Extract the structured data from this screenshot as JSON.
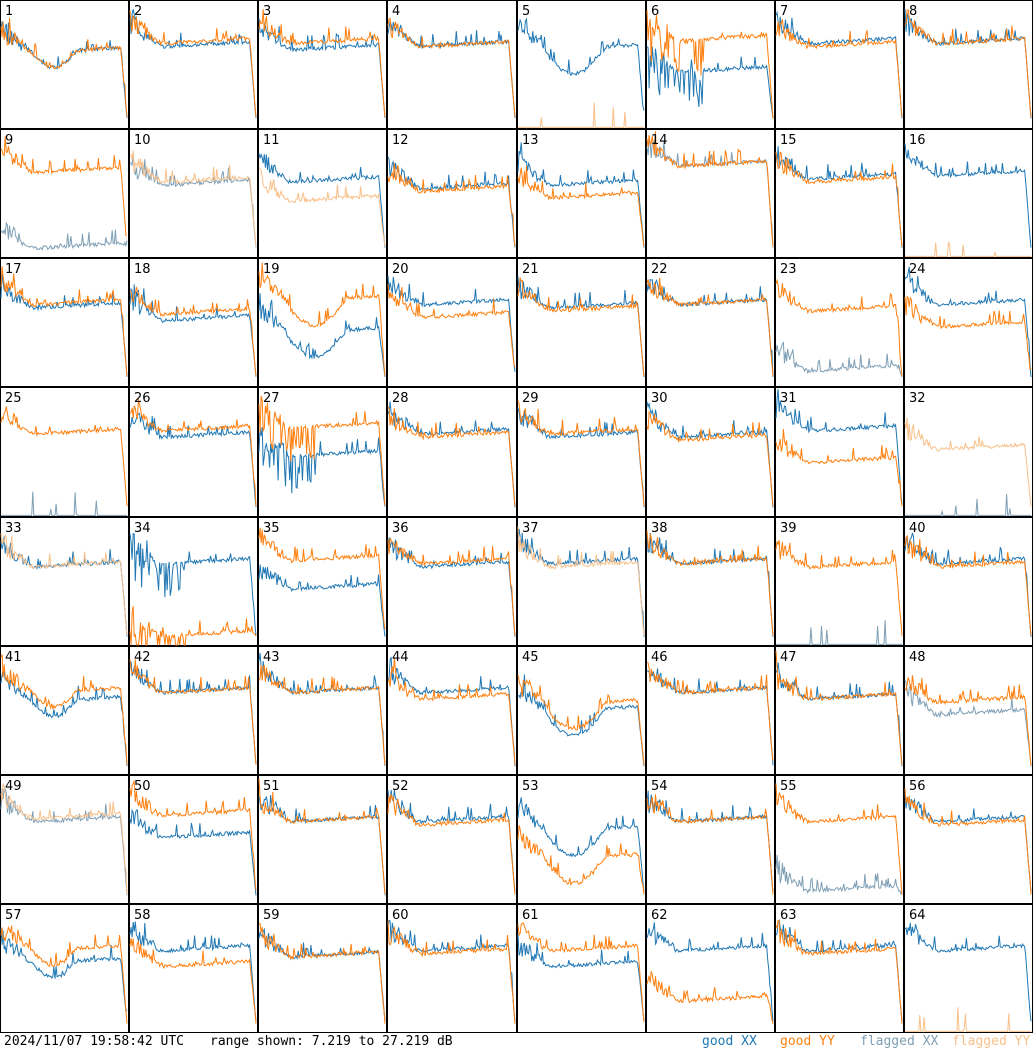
{
  "footer": {
    "timestamp": "2024/11/07 19:58:42 UTC",
    "range_text": "range shown: 7.219 to 27.219 dB"
  },
  "legend": [
    {
      "label": "good XX",
      "color": "#1f77b4"
    },
    {
      "label": "good YY",
      "color": "#ff7f0e"
    },
    {
      "label": "flagged XX",
      "color": "#7f9fb5"
    },
    {
      "label": "flagged YY",
      "color": "#f8c08a"
    }
  ],
  "chart_data": {
    "type": "line",
    "title": "",
    "ylim": [
      7.219,
      27.219
    ],
    "yunit": "dB",
    "grid": false,
    "rows": 8,
    "cols": 8,
    "panels": [
      {
        "id": "1",
        "xx": "good",
        "yy": "good",
        "xx_level": 18.5,
        "yy_level": 18.5,
        "anomaly": "dip"
      },
      {
        "id": "2",
        "xx": "good",
        "yy": "good",
        "xx_level": 19.5,
        "yy_level": 20.0
      },
      {
        "id": "3",
        "xx": "good",
        "yy": "good",
        "xx_level": 19.0,
        "yy_level": 20.0
      },
      {
        "id": "4",
        "xx": "good",
        "yy": "good",
        "xx_level": 19.5,
        "yy_level": 19.5
      },
      {
        "id": "5",
        "xx": "good",
        "yy": "flagged",
        "xx_level": 19.0,
        "yy_level": 7.3,
        "anomaly": "trough"
      },
      {
        "id": "6",
        "xx": "good",
        "yy": "good",
        "xx_level": 15.5,
        "yy_level": 20.5,
        "anomaly": "spiky"
      },
      {
        "id": "7",
        "xx": "good",
        "yy": "good",
        "xx_level": 20.0,
        "yy_level": 19.5
      },
      {
        "id": "8",
        "xx": "good",
        "yy": "good",
        "xx_level": 20.0,
        "yy_level": 20.0
      },
      {
        "id": "9",
        "xx": "flagged",
        "yy": "good",
        "xx_level": 8.0,
        "yy_level": 20.0
      },
      {
        "id": "10",
        "xx": "flagged",
        "yy": "flagged",
        "xx_level": 18.0,
        "yy_level": 18.5
      },
      {
        "id": "11",
        "xx": "good",
        "yy": "flagged",
        "xx_level": 18.5,
        "yy_level": 15.5
      },
      {
        "id": "12",
        "xx": "good",
        "yy": "good",
        "xx_level": 17.5,
        "yy_level": 17.0
      },
      {
        "id": "13",
        "xx": "good",
        "yy": "good",
        "xx_level": 18.0,
        "yy_level": 16.0
      },
      {
        "id": "14",
        "xx": "flagged",
        "yy": "good",
        "xx_level": 21.0,
        "yy_level": 21.0
      },
      {
        "id": "15",
        "xx": "good",
        "yy": "good",
        "xx_level": 19.0,
        "yy_level": 18.5
      },
      {
        "id": "16",
        "xx": "good",
        "yy": "flagged",
        "xx_level": 19.5,
        "yy_level": 7.3
      },
      {
        "id": "17",
        "xx": "good",
        "yy": "good",
        "xx_level": 19.0,
        "yy_level": 19.5
      },
      {
        "id": "18",
        "xx": "good",
        "yy": "good",
        "xx_level": 17.0,
        "yy_level": 18.0
      },
      {
        "id": "19",
        "xx": "good",
        "yy": "good",
        "xx_level": 15.0,
        "yy_level": 20.0,
        "anomaly": "trough"
      },
      {
        "id": "20",
        "xx": "good",
        "yy": "good",
        "xx_level": 19.5,
        "yy_level": 17.5
      },
      {
        "id": "21",
        "xx": "good",
        "yy": "good",
        "xx_level": 19.0,
        "yy_level": 18.5
      },
      {
        "id": "22",
        "xx": "good",
        "yy": "good",
        "xx_level": 19.5,
        "yy_level": 19.5
      },
      {
        "id": "23",
        "xx": "flagged",
        "yy": "good",
        "xx_level": 9.0,
        "yy_level": 18.5
      },
      {
        "id": "24",
        "xx": "good",
        "yy": "good",
        "xx_level": 19.5,
        "yy_level": 16.0
      },
      {
        "id": "25",
        "xx": "flagged",
        "yy": "good",
        "xx_level": 7.3,
        "yy_level": 19.5
      },
      {
        "id": "26",
        "xx": "good",
        "yy": "good",
        "xx_level": 19.0,
        "yy_level": 20.0
      },
      {
        "id": "27",
        "xx": "good",
        "yy": "good",
        "xx_level": 16.0,
        "yy_level": 20.5,
        "anomaly": "spiky"
      },
      {
        "id": "28",
        "xx": "good",
        "yy": "good",
        "xx_level": 19.5,
        "yy_level": 19.0
      },
      {
        "id": "29",
        "xx": "good",
        "yy": "good",
        "xx_level": 19.0,
        "yy_level": 19.5
      },
      {
        "id": "30",
        "xx": "good",
        "yy": "good",
        "xx_level": 19.0,
        "yy_level": 18.5
      },
      {
        "id": "31",
        "xx": "good",
        "yy": "good",
        "xx_level": 20.0,
        "yy_level": 15.0
      },
      {
        "id": "32",
        "xx": "flagged",
        "yy": "flagged",
        "xx_level": 7.3,
        "yy_level": 17.0
      },
      {
        "id": "33",
        "xx": "good",
        "yy": "flagged",
        "xx_level": 19.0,
        "yy_level": 19.0
      },
      {
        "id": "34",
        "xx": "good",
        "yy": "good",
        "xx_level": 19.5,
        "yy_level": 8.0,
        "anomaly": "spiky"
      },
      {
        "id": "35",
        "xx": "good",
        "yy": "good",
        "xx_level": 15.5,
        "yy_level": 20.0
      },
      {
        "id": "36",
        "xx": "good",
        "yy": "good",
        "xx_level": 19.0,
        "yy_level": 19.5
      },
      {
        "id": "37",
        "xx": "good",
        "yy": "flagged",
        "xx_level": 19.5,
        "yy_level": 19.0
      },
      {
        "id": "38",
        "xx": "good",
        "yy": "good",
        "xx_level": 19.5,
        "yy_level": 19.5
      },
      {
        "id": "39",
        "xx": "flagged",
        "yy": "good",
        "xx_level": 7.3,
        "yy_level": 19.0
      },
      {
        "id": "40",
        "xx": "good",
        "yy": "good",
        "xx_level": 19.5,
        "yy_level": 19.0
      },
      {
        "id": "41",
        "xx": "good",
        "yy": "good",
        "xx_level": 18.0,
        "yy_level": 19.5,
        "anomaly": "dip"
      },
      {
        "id": "42",
        "xx": "good",
        "yy": "good",
        "xx_level": 19.5,
        "yy_level": 19.5
      },
      {
        "id": "43",
        "xx": "good",
        "yy": "good",
        "xx_level": 19.5,
        "yy_level": 19.5
      },
      {
        "id": "44",
        "xx": "good",
        "yy": "good",
        "xx_level": 19.5,
        "yy_level": 18.5
      },
      {
        "id": "45",
        "xx": "good",
        "yy": "good",
        "xx_level": 16.5,
        "yy_level": 17.5,
        "anomaly": "trough"
      },
      {
        "id": "46",
        "xx": "good",
        "yy": "good",
        "xx_level": 19.5,
        "yy_level": 19.5
      },
      {
        "id": "47",
        "xx": "good",
        "yy": "good",
        "xx_level": 18.5,
        "yy_level": 18.5
      },
      {
        "id": "48",
        "xx": "flagged",
        "yy": "good",
        "xx_level": 16.0,
        "yy_level": 18.0
      },
      {
        "id": "49",
        "xx": "flagged",
        "yy": "flagged",
        "xx_level": 19.5,
        "yy_level": 20.0
      },
      {
        "id": "50",
        "xx": "good",
        "yy": "good",
        "xx_level": 17.0,
        "yy_level": 20.5
      },
      {
        "id": "51",
        "xx": "good",
        "yy": "good",
        "xx_level": 19.5,
        "yy_level": 19.5
      },
      {
        "id": "52",
        "xx": "good",
        "yy": "good",
        "xx_level": 19.5,
        "yy_level": 19.0
      },
      {
        "id": "53",
        "xx": "good",
        "yy": "good",
        "xx_level": 18.0,
        "yy_level": 13.5,
        "anomaly": "trough"
      },
      {
        "id": "54",
        "xx": "good",
        "yy": "good",
        "xx_level": 19.5,
        "yy_level": 19.5
      },
      {
        "id": "55",
        "xx": "flagged",
        "yy": "good",
        "xx_level": 8.5,
        "yy_level": 19.5
      },
      {
        "id": "56",
        "xx": "good",
        "yy": "good",
        "xx_level": 19.5,
        "yy_level": 19.0
      },
      {
        "id": "57",
        "xx": "good",
        "yy": "good",
        "xx_level": 17.5,
        "yy_level": 19.5,
        "anomaly": "dip"
      },
      {
        "id": "58",
        "xx": "good",
        "yy": "good",
        "xx_level": 19.5,
        "yy_level": 17.0
      },
      {
        "id": "59",
        "xx": "good",
        "yy": "good",
        "xx_level": 18.5,
        "yy_level": 18.5
      },
      {
        "id": "60",
        "xx": "good",
        "yy": "good",
        "xx_level": 19.5,
        "yy_level": 19.0
      },
      {
        "id": "61",
        "xx": "good",
        "yy": "good",
        "xx_level": 17.0,
        "yy_level": 19.5
      },
      {
        "id": "62",
        "xx": "good",
        "yy": "good",
        "xx_level": 19.5,
        "yy_level": 11.5
      },
      {
        "id": "63",
        "xx": "good",
        "yy": "good",
        "xx_level": 19.5,
        "yy_level": 19.0
      },
      {
        "id": "64",
        "xx": "good",
        "yy": "flagged",
        "xx_level": 19.5,
        "yy_level": 7.3
      }
    ]
  }
}
